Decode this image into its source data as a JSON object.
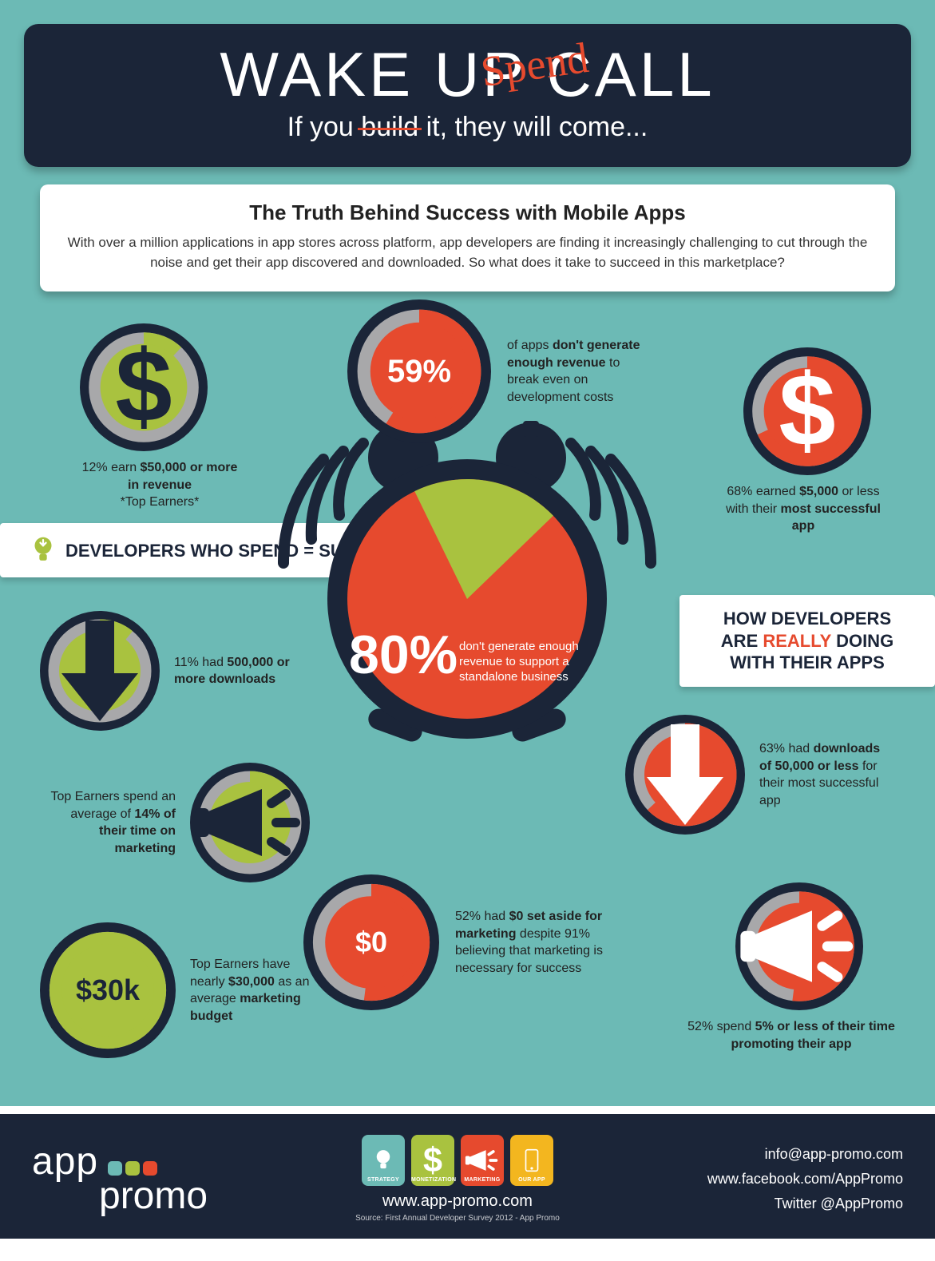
{
  "palette": {
    "bg": "#6cbab5",
    "dark": "#1b2538",
    "orange": "#e64a2e",
    "green": "#a9c23f",
    "grey": "#a8a8aa",
    "white": "#ffffff",
    "yellow": "#f3b61f"
  },
  "header": {
    "title": "WAKE UP CALL",
    "scribble": "Spend",
    "sub_pre": "If you ",
    "sub_strike": "build",
    "sub_post": " it, they will come..."
  },
  "intro": {
    "title": "The Truth Behind Success with Mobile Apps",
    "body": "With over a million applications in app stores across platform, app developers are finding it increasingly challenging to cut through the noise and get their app discovered and downloaded. So what does it take to succeed in this marketplace?"
  },
  "labels": {
    "left": "DEVELOPERS WHO SPEND = SUCCEED",
    "right_pre": "HOW DEVELOPERS ARE ",
    "right_em": "REALLY",
    "right_post": " DOING WITH THEIR APPS"
  },
  "clock": {
    "slice_pct": 80,
    "big": "80%",
    "text": "don't generate enough revenue to support a standalone business",
    "face_color": "#e64a2e",
    "slice_color": "#a9c23f",
    "body_color": "#1b2538"
  },
  "bubbles": {
    "top_left": {
      "pct": 12,
      "ring_fill": "#a9c23f",
      "ring_track": "#a8a8aa",
      "outer": "#1b2538",
      "icon": "dollar",
      "icon_color": "#1b2538",
      "cap": "12% earn <b>$50,000 or more in revenue</b><br>*Top Earners*",
      "center_text": ""
    },
    "top_mid": {
      "pct": 59,
      "ring_fill": "#e64a2e",
      "ring_track": "#a8a8aa",
      "outer": "#1b2538",
      "icon": "",
      "center_text": "59%",
      "center_size": 40,
      "cap": "of apps <b>don't generate enough revenue</b> to break  even on development costs"
    },
    "top_right": {
      "pct": 68,
      "ring_fill": "#e64a2e",
      "ring_track": "#a8a8aa",
      "outer": "#1b2538",
      "icon": "dollar",
      "icon_color": "#ffffff",
      "center_text": "",
      "cap": "68% earned <b>$5,000</b> or less with their <b>most successful app</b>"
    },
    "mid_left": {
      "pct": 11,
      "ring_fill": "#a9c23f",
      "ring_track": "#a8a8aa",
      "outer": "#1b2538",
      "icon": "arrow_down",
      "icon_color": "#1b2538",
      "center_text": "",
      "cap": "11% had <b>500,000 or more downloads</b>"
    },
    "mid_right": {
      "pct": 63,
      "ring_fill": "#e64a2e",
      "ring_track": "#a8a8aa",
      "outer": "#1b2538",
      "icon": "arrow_down",
      "icon_color": "#ffffff",
      "center_text": "",
      "cap": "63% had <b>downloads of 50,000 or less</b> for their most successful app"
    },
    "low_left": {
      "pct": 14,
      "ring_fill": "#a9c23f",
      "ring_track": "#a8a8aa",
      "outer": "#1b2538",
      "icon": "megaphone",
      "icon_color": "#1b2538",
      "center_text": "",
      "cap": "Top Earners spend an average of <b>14% of their time on marketing</b>"
    },
    "low_mid": {
      "pct": 52,
      "ring_fill": "#e64a2e",
      "ring_track": "#a8a8aa",
      "outer": "#1b2538",
      "icon": "",
      "center_text": "$0",
      "center_size": 36,
      "cap": "52% had <b>$0 set aside for marketing</b> despite 91% believing that marketing is necessary for success"
    },
    "low_right": {
      "pct": 52,
      "ring_fill": "#e64a2e",
      "ring_track": "#a8a8aa",
      "outer": "#1b2538",
      "icon": "megaphone",
      "icon_color": "#ffffff",
      "center_text": "",
      "cap": "52% spend <b>5% or less of their time promoting their app</b>"
    },
    "bottom_left": {
      "pct": 100,
      "ring_fill": "#a9c23f",
      "ring_track": "#a8a8aa",
      "outer": "#1b2538",
      "icon": "",
      "center_text": "$30k",
      "center_size": 36,
      "center_color": "#1b2538",
      "cap": "Top Earners have nearly <b>$30,000</b> as an average <b>marketing budget</b>"
    }
  },
  "footer": {
    "logo_app": "app",
    "logo_promo": "promo",
    "dot_colors": [
      "#6cbab5",
      "#a9c23f",
      "#e64a2e"
    ],
    "icons": [
      {
        "bg": "#6cbab5",
        "label": "STRATEGY",
        "glyph": "bulb"
      },
      {
        "bg": "#a9c23f",
        "label": "MONETIZATION",
        "glyph": "dollar"
      },
      {
        "bg": "#e64a2e",
        "label": "MARKETING",
        "glyph": "megaphone"
      },
      {
        "bg": "#f3b61f",
        "label": "OUR APP",
        "glyph": "phone"
      }
    ],
    "url": "www.app-promo.com",
    "source": "Source: First Annual Developer Survey 2012 - App Promo",
    "email": "info@app-promo.com",
    "fb": "www.facebook.com/AppPromo",
    "tw": "Twitter @AppPromo"
  }
}
